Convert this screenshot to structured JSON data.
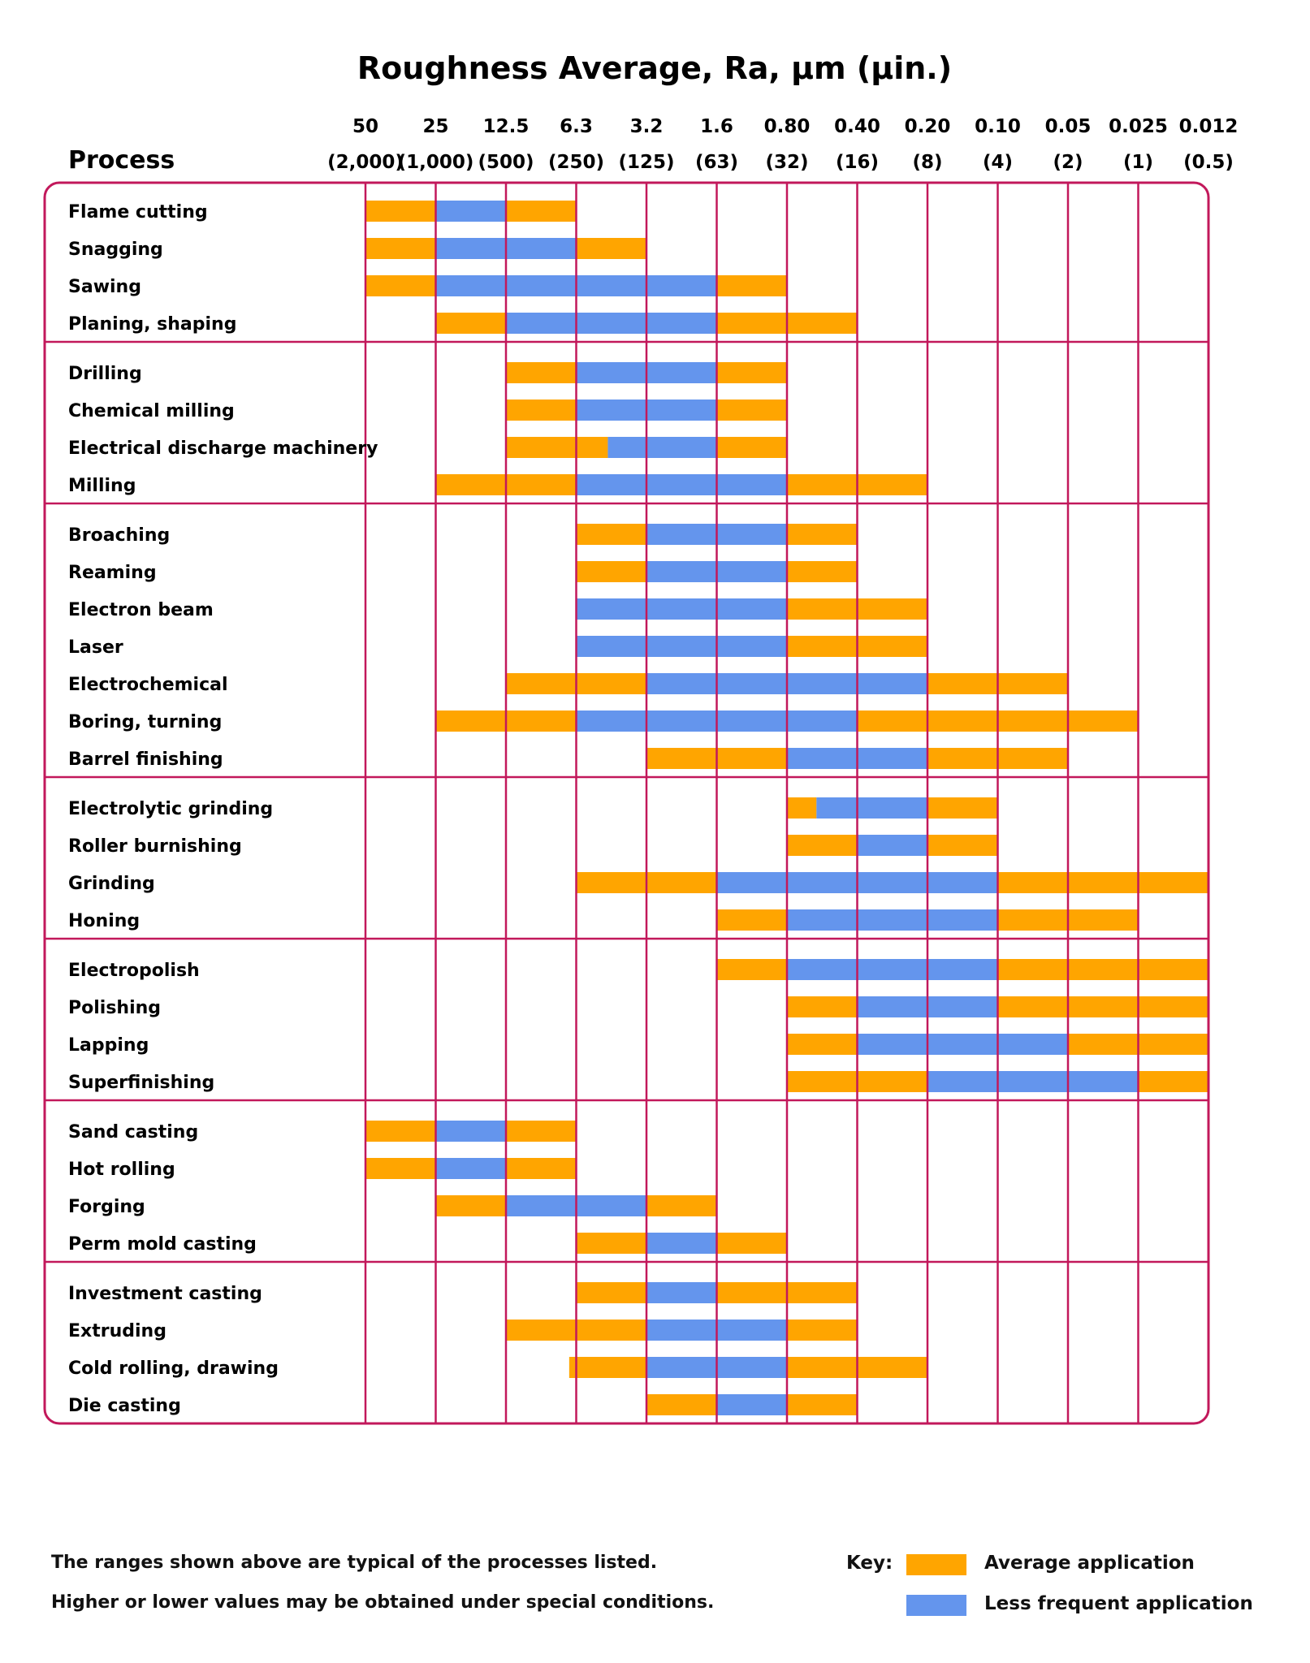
{
  "chart_data": {
    "type": "bar",
    "title": "Roughness Average, Ra, µm (µin.)",
    "row_header": "Process",
    "columns": [
      {
        "um": "50",
        "uin": "(2,000)"
      },
      {
        "um": "25",
        "uin": "(1,000)"
      },
      {
        "um": "12.5",
        "uin": "(500)"
      },
      {
        "um": "6.3",
        "uin": "(250)"
      },
      {
        "um": "3.2",
        "uin": "(125)"
      },
      {
        "um": "1.6",
        "uin": "(63)"
      },
      {
        "um": "0.80",
        "uin": "(32)"
      },
      {
        "um": "0.40",
        "uin": "(16)"
      },
      {
        "um": "0.20",
        "uin": "(8)"
      },
      {
        "um": "0.10",
        "uin": "(4)"
      },
      {
        "um": "0.05",
        "uin": "(2)"
      },
      {
        "um": "0.025",
        "uin": "(1)"
      },
      {
        "um": "0.012",
        "uin": "(0.5)"
      }
    ],
    "series": [
      {
        "name": "Average application",
        "color": "#FFA500"
      },
      {
        "name": "Less frequent application",
        "color": "#6495ED"
      }
    ],
    "groups": [
      [
        {
          "process": "Flame cutting",
          "segments": [
            [
              0,
              1,
              "avg"
            ],
            [
              1,
              2,
              "less"
            ],
            [
              2,
              3,
              "avg"
            ]
          ]
        },
        {
          "process": "Snagging",
          "segments": [
            [
              0,
              1,
              "avg"
            ],
            [
              1,
              3,
              "less"
            ],
            [
              3,
              4,
              "avg"
            ]
          ]
        },
        {
          "process": "Sawing",
          "segments": [
            [
              0,
              1,
              "avg"
            ],
            [
              1,
              5,
              "less"
            ],
            [
              5,
              6,
              "avg"
            ]
          ]
        },
        {
          "process": "Planing, shaping",
          "segments": [
            [
              1,
              2,
              "avg"
            ],
            [
              2,
              5,
              "less"
            ],
            [
              5,
              7,
              "avg"
            ]
          ]
        }
      ],
      [
        {
          "process": "Drilling",
          "segments": [
            [
              2,
              3,
              "avg"
            ],
            [
              3,
              5,
              "less"
            ],
            [
              5,
              6,
              "avg"
            ]
          ]
        },
        {
          "process": "Chemical milling",
          "segments": [
            [
              2,
              3,
              "avg"
            ],
            [
              3,
              5,
              "less"
            ],
            [
              5,
              6,
              "avg"
            ]
          ]
        },
        {
          "process": "Electrical discharge machinery",
          "segments": [
            [
              2,
              3.45,
              "avg"
            ],
            [
              3.45,
              5,
              "less"
            ],
            [
              5,
              6,
              "avg"
            ]
          ]
        },
        {
          "process": "Milling",
          "segments": [
            [
              1,
              3,
              "avg"
            ],
            [
              3,
              6,
              "less"
            ],
            [
              6,
              8,
              "avg"
            ]
          ]
        }
      ],
      [
        {
          "process": "Broaching",
          "segments": [
            [
              3,
              4,
              "avg"
            ],
            [
              4,
              6,
              "less"
            ],
            [
              6,
              7,
              "avg"
            ]
          ]
        },
        {
          "process": "Reaming",
          "segments": [
            [
              3,
              4,
              "avg"
            ],
            [
              4,
              6,
              "less"
            ],
            [
              6,
              7,
              "avg"
            ]
          ]
        },
        {
          "process": "Electron beam",
          "segments": [
            [
              3,
              6,
              "less"
            ],
            [
              6,
              8,
              "avg"
            ]
          ]
        },
        {
          "process": "Laser",
          "segments": [
            [
              3,
              6,
              "less"
            ],
            [
              6,
              8,
              "avg"
            ]
          ]
        },
        {
          "process": "Electrochemical",
          "segments": [
            [
              2,
              4,
              "avg"
            ],
            [
              4,
              8,
              "less"
            ],
            [
              8,
              10,
              "avg"
            ]
          ]
        },
        {
          "process": "Boring, turning",
          "segments": [
            [
              1,
              3,
              "avg"
            ],
            [
              3,
              7,
              "less"
            ],
            [
              7,
              11,
              "avg"
            ]
          ]
        },
        {
          "process": "Barrel finishing",
          "segments": [
            [
              4,
              6,
              "avg"
            ],
            [
              6,
              8,
              "less"
            ],
            [
              8,
              10,
              "avg"
            ]
          ]
        }
      ],
      [
        {
          "process": "Electrolytic grinding",
          "segments": [
            [
              6,
              6.42,
              "avg"
            ],
            [
              6.42,
              8,
              "less"
            ],
            [
              8,
              9,
              "avg"
            ]
          ]
        },
        {
          "process": "Roller burnishing",
          "segments": [
            [
              6,
              7,
              "avg"
            ],
            [
              7,
              8,
              "less"
            ],
            [
              8,
              9,
              "avg"
            ]
          ]
        },
        {
          "process": "Grinding",
          "segments": [
            [
              3,
              5,
              "avg"
            ],
            [
              5,
              9,
              "less"
            ],
            [
              9,
              12,
              "avg"
            ]
          ]
        },
        {
          "process": "Honing",
          "segments": [
            [
              5,
              6,
              "avg"
            ],
            [
              6,
              9,
              "less"
            ],
            [
              9,
              11,
              "avg"
            ]
          ]
        }
      ],
      [
        {
          "process": "Electropolish",
          "segments": [
            [
              5,
              6,
              "avg"
            ],
            [
              6,
              9,
              "less"
            ],
            [
              9,
              12,
              "avg"
            ]
          ]
        },
        {
          "process": "Polishing",
          "segments": [
            [
              6,
              7,
              "avg"
            ],
            [
              7,
              9,
              "less"
            ],
            [
              9,
              12,
              "avg"
            ]
          ]
        },
        {
          "process": "Lapping",
          "segments": [
            [
              6,
              7,
              "avg"
            ],
            [
              7,
              10,
              "less"
            ],
            [
              10,
              12,
              "avg"
            ]
          ]
        },
        {
          "process": "Superfinishing",
          "segments": [
            [
              6,
              8,
              "avg"
            ],
            [
              8,
              11,
              "less"
            ],
            [
              11,
              12,
              "avg"
            ]
          ]
        }
      ],
      [
        {
          "process": "Sand casting",
          "segments": [
            [
              0,
              1,
              "avg"
            ],
            [
              1,
              2,
              "less"
            ],
            [
              2,
              3,
              "avg"
            ]
          ]
        },
        {
          "process": "Hot rolling",
          "segments": [
            [
              0,
              1,
              "avg"
            ],
            [
              1,
              2,
              "less"
            ],
            [
              2,
              3,
              "avg"
            ]
          ]
        },
        {
          "process": "Forging",
          "segments": [
            [
              1,
              2,
              "avg"
            ],
            [
              2,
              4,
              "less"
            ],
            [
              4,
              5,
              "avg"
            ]
          ]
        },
        {
          "process": "Perm mold casting",
          "segments": [
            [
              3,
              4,
              "avg"
            ],
            [
              4,
              5,
              "less"
            ],
            [
              5,
              6,
              "avg"
            ]
          ]
        }
      ],
      [
        {
          "process": "Investment casting",
          "segments": [
            [
              3,
              4,
              "avg"
            ],
            [
              4,
              5,
              "less"
            ],
            [
              5,
              7,
              "avg"
            ]
          ]
        },
        {
          "process": "Extruding",
          "segments": [
            [
              2,
              4,
              "avg"
            ],
            [
              4,
              6,
              "less"
            ],
            [
              6,
              7,
              "avg"
            ]
          ]
        },
        {
          "process": "Cold rolling, drawing",
          "segments": [
            [
              2.9,
              4,
              "avg"
            ],
            [
              4,
              6,
              "less"
            ],
            [
              6,
              8,
              "avg"
            ]
          ]
        },
        {
          "process": "Die casting",
          "segments": [
            [
              4,
              5,
              "avg"
            ],
            [
              5,
              6,
              "less"
            ],
            [
              6,
              7,
              "avg"
            ]
          ]
        }
      ]
    ]
  },
  "notes": {
    "line1": "The ranges shown above are typical of the processes listed.",
    "line2": "Higher or lower values may be obtained under special conditions."
  },
  "key": {
    "label": "Key:",
    "average": "Average application",
    "less": "Less frequent application",
    "avg_color": "#FFA500",
    "less_color": "#6495ED",
    "border_color": "#C2185B"
  }
}
